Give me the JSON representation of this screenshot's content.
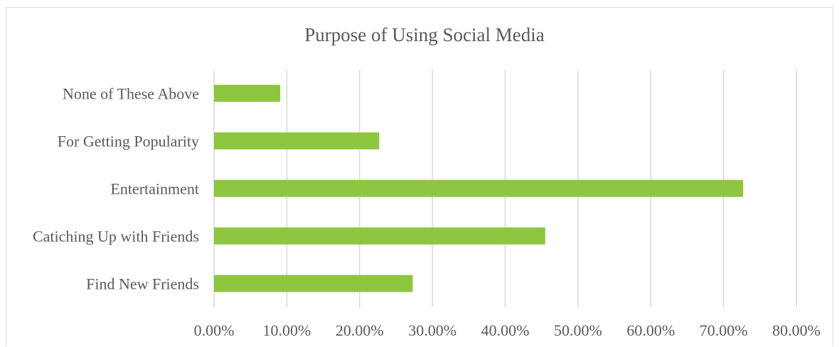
{
  "chart_data": {
    "type": "bar",
    "orientation": "horizontal",
    "title": "Purpose of Using Social Media",
    "categories": [
      "None of These Above",
      "For Getting Popularity",
      "Entertainment",
      "Catiching Up with Friends",
      "Find New Friends"
    ],
    "values": [
      9.1,
      22.7,
      72.7,
      45.5,
      27.3
    ],
    "xlim": [
      0,
      80
    ],
    "x_ticks": [
      "0.00%",
      "10.00%",
      "20.00%",
      "30.00%",
      "40.00%",
      "50.00%",
      "60.00%",
      "70.00%",
      "80.00%"
    ],
    "grid": true,
    "legend": "none",
    "bar_color": "#8dc63f"
  }
}
